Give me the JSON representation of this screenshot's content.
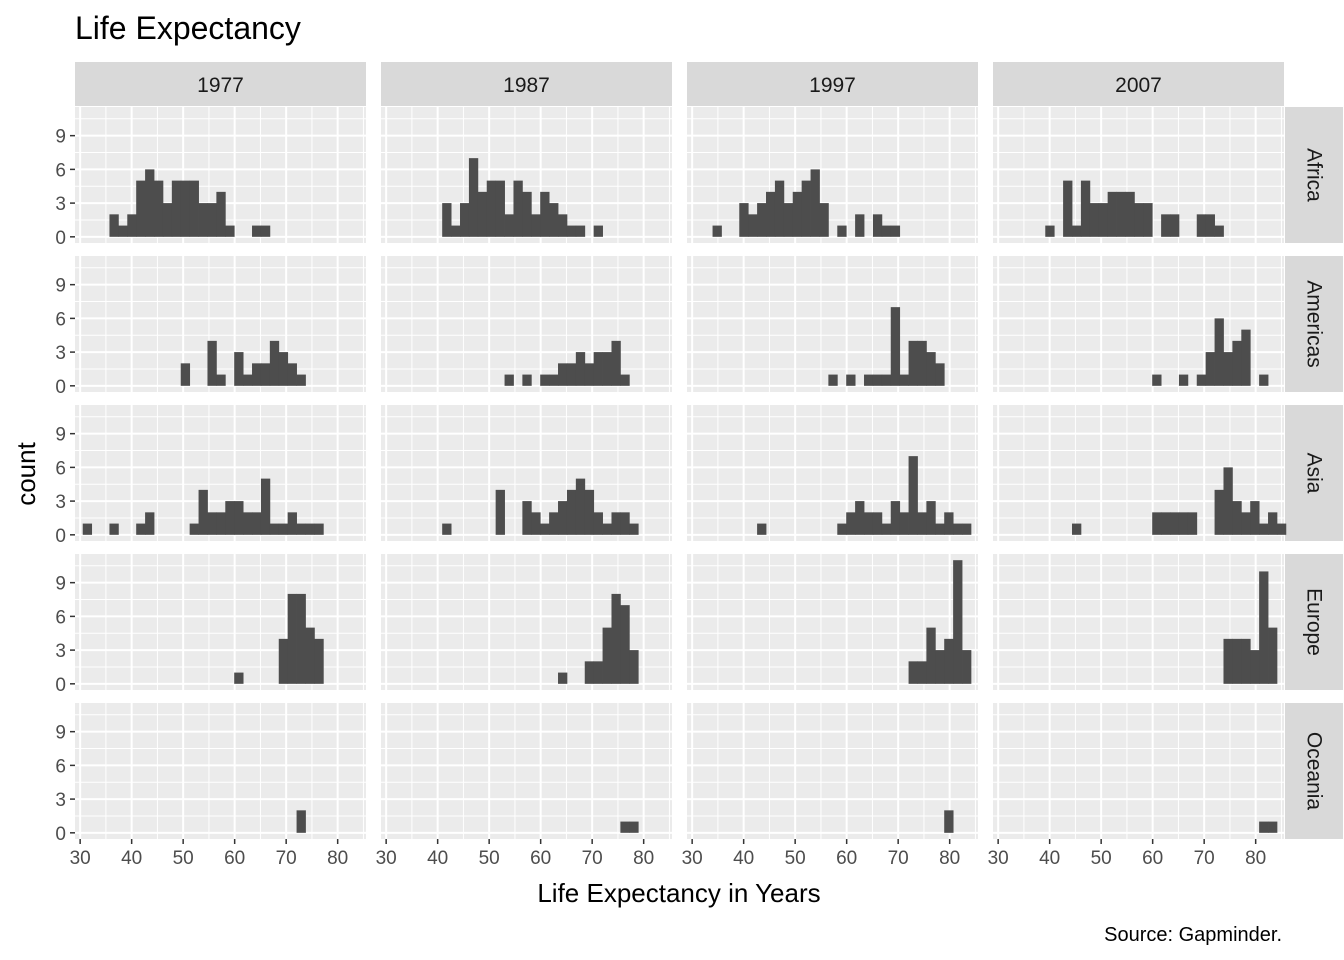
{
  "chart_data": {
    "type": "bar",
    "title": "Life Expectancy",
    "xlabel": "Life Expectancy in Years",
    "ylabel": "count",
    "caption": "Source: Gapminder.",
    "xlim": [
      29,
      85.5
    ],
    "ylim": [
      -0.55,
      11.55
    ],
    "x_ticks": [
      30,
      40,
      50,
      60,
      70,
      80
    ],
    "y_ticks": [
      0,
      3,
      6,
      9
    ],
    "bin_width": 1.73,
    "bin_start": 30.5,
    "grid": true,
    "colors": {
      "panel_bg": "#ebebeb",
      "strip_bg": "#d9d9d9",
      "bar": "#4d4d4d",
      "grid": "#ffffff"
    },
    "facet_cols": [
      "1977",
      "1987",
      "1997",
      "2007"
    ],
    "facet_rows": [
      "Africa",
      "Americas",
      "Asia",
      "Europe",
      "Oceania"
    ],
    "panels": [
      {
        "row": "Africa",
        "col": "1977",
        "counts": [
          0,
          0,
          0,
          2,
          1,
          2,
          5,
          6,
          5,
          3,
          5,
          5,
          5,
          3,
          3,
          4,
          1,
          0,
          0,
          1,
          1,
          0,
          0,
          0,
          0,
          0,
          0,
          0,
          0,
          0,
          0,
          0
        ]
      },
      {
        "row": "Africa",
        "col": "1987",
        "counts": [
          0,
          0,
          0,
          0,
          0,
          0,
          3,
          1,
          3,
          7,
          4,
          5,
          5,
          2,
          5,
          4,
          2,
          4,
          3,
          2,
          1,
          1,
          0,
          1,
          0,
          0,
          0,
          0,
          0,
          0,
          0,
          0
        ]
      },
      {
        "row": "Africa",
        "col": "1997",
        "counts": [
          0,
          0,
          1,
          0,
          0,
          3,
          2,
          3,
          4,
          5,
          3,
          4,
          5,
          6,
          3,
          0,
          1,
          0,
          2,
          0,
          2,
          1,
          1,
          0,
          0,
          0,
          0,
          0,
          0,
          0,
          0,
          0
        ]
      },
      {
        "row": "Africa",
        "col": "2007",
        "counts": [
          0,
          0,
          0,
          0,
          0,
          1,
          0,
          5,
          1,
          5,
          3,
          3,
          4,
          4,
          4,
          3,
          3,
          0,
          2,
          2,
          0,
          0,
          2,
          2,
          1,
          0,
          0,
          0,
          0,
          0,
          0,
          0
        ]
      },
      {
        "row": "Americas",
        "col": "1977",
        "counts": [
          0,
          0,
          0,
          0,
          0,
          0,
          0,
          0,
          0,
          0,
          0,
          2,
          0,
          0,
          4,
          1,
          0,
          3,
          1,
          2,
          2,
          4,
          3,
          2,
          1,
          0,
          0,
          0,
          0,
          0,
          0,
          0
        ]
      },
      {
        "row": "Americas",
        "col": "1987",
        "counts": [
          0,
          0,
          0,
          0,
          0,
          0,
          0,
          0,
          0,
          0,
          0,
          0,
          0,
          1,
          0,
          1,
          0,
          1,
          1,
          2,
          2,
          3,
          2,
          3,
          3,
          4,
          1,
          0,
          0,
          0,
          0,
          0
        ]
      },
      {
        "row": "Americas",
        "col": "1997",
        "counts": [
          0,
          0,
          0,
          0,
          0,
          0,
          0,
          0,
          0,
          0,
          0,
          0,
          0,
          0,
          0,
          1,
          0,
          1,
          0,
          1,
          1,
          1,
          7,
          1,
          4,
          4,
          3,
          2,
          0,
          0,
          0,
          0
        ]
      },
      {
        "row": "Americas",
        "col": "2007",
        "counts": [
          0,
          0,
          0,
          0,
          0,
          0,
          0,
          0,
          0,
          0,
          0,
          0,
          0,
          0,
          0,
          0,
          0,
          1,
          0,
          0,
          1,
          0,
          1,
          3,
          6,
          3,
          4,
          5,
          0,
          1,
          0,
          0
        ]
      },
      {
        "row": "Asia",
        "col": "1977",
        "counts": [
          1,
          0,
          0,
          1,
          0,
          0,
          1,
          2,
          0,
          0,
          0,
          0,
          1,
          4,
          2,
          2,
          3,
          3,
          2,
          2,
          5,
          1,
          1,
          2,
          1,
          1,
          1,
          0,
          0,
          0,
          0,
          0
        ]
      },
      {
        "row": "Asia",
        "col": "1987",
        "counts": [
          0,
          0,
          0,
          0,
          0,
          0,
          1,
          0,
          0,
          0,
          0,
          0,
          4,
          0,
          0,
          3,
          2,
          1,
          2,
          3,
          4,
          5,
          4,
          2,
          1,
          2,
          2,
          1,
          0,
          0,
          0,
          0
        ]
      },
      {
        "row": "Asia",
        "col": "1997",
        "counts": [
          0,
          0,
          0,
          0,
          0,
          0,
          0,
          1,
          0,
          0,
          0,
          0,
          0,
          0,
          0,
          0,
          1,
          2,
          3,
          2,
          2,
          1,
          3,
          2,
          7,
          2,
          3,
          1,
          2,
          1,
          1,
          0
        ]
      },
      {
        "row": "Asia",
        "col": "2007",
        "counts": [
          0,
          0,
          0,
          0,
          0,
          0,
          0,
          0,
          1,
          0,
          0,
          0,
          0,
          0,
          0,
          0,
          0,
          2,
          2,
          2,
          2,
          2,
          0,
          0,
          4,
          6,
          3,
          2,
          3,
          1,
          2,
          1
        ]
      },
      {
        "row": "Europe",
        "col": "1977",
        "counts": [
          0,
          0,
          0,
          0,
          0,
          0,
          0,
          0,
          0,
          0,
          0,
          0,
          0,
          0,
          0,
          0,
          0,
          1,
          0,
          0,
          0,
          0,
          4,
          8,
          8,
          5,
          4,
          0,
          0,
          0,
          0,
          0
        ]
      },
      {
        "row": "Europe",
        "col": "1987",
        "counts": [
          0,
          0,
          0,
          0,
          0,
          0,
          0,
          0,
          0,
          0,
          0,
          0,
          0,
          0,
          0,
          0,
          0,
          0,
          0,
          1,
          0,
          0,
          2,
          2,
          5,
          8,
          7,
          3,
          0,
          0,
          0,
          0
        ]
      },
      {
        "row": "Europe",
        "col": "1997",
        "counts": [
          0,
          0,
          0,
          0,
          0,
          0,
          0,
          0,
          0,
          0,
          0,
          0,
          0,
          0,
          0,
          0,
          0,
          0,
          0,
          0,
          0,
          0,
          0,
          0,
          2,
          2,
          5,
          3,
          4,
          11,
          3,
          0
        ]
      },
      {
        "row": "Europe",
        "col": "2007",
        "counts": [
          0,
          0,
          0,
          0,
          0,
          0,
          0,
          0,
          0,
          0,
          0,
          0,
          0,
          0,
          0,
          0,
          0,
          0,
          0,
          0,
          0,
          0,
          0,
          0,
          0,
          4,
          4,
          4,
          3,
          10,
          5,
          0
        ]
      },
      {
        "row": "Oceania",
        "col": "1977",
        "counts": [
          0,
          0,
          0,
          0,
          0,
          0,
          0,
          0,
          0,
          0,
          0,
          0,
          0,
          0,
          0,
          0,
          0,
          0,
          0,
          0,
          0,
          0,
          0,
          0,
          2,
          0,
          0,
          0,
          0,
          0,
          0,
          0
        ]
      },
      {
        "row": "Oceania",
        "col": "1987",
        "counts": [
          0,
          0,
          0,
          0,
          0,
          0,
          0,
          0,
          0,
          0,
          0,
          0,
          0,
          0,
          0,
          0,
          0,
          0,
          0,
          0,
          0,
          0,
          0,
          0,
          0,
          0,
          1,
          1,
          0,
          0,
          0,
          0
        ]
      },
      {
        "row": "Oceania",
        "col": "1997",
        "counts": [
          0,
          0,
          0,
          0,
          0,
          0,
          0,
          0,
          0,
          0,
          0,
          0,
          0,
          0,
          0,
          0,
          0,
          0,
          0,
          0,
          0,
          0,
          0,
          0,
          0,
          0,
          0,
          0,
          2,
          0,
          0,
          0
        ]
      },
      {
        "row": "Oceania",
        "col": "2007",
        "counts": [
          0,
          0,
          0,
          0,
          0,
          0,
          0,
          0,
          0,
          0,
          0,
          0,
          0,
          0,
          0,
          0,
          0,
          0,
          0,
          0,
          0,
          0,
          0,
          0,
          0,
          0,
          0,
          0,
          0,
          1,
          1,
          0
        ]
      }
    ]
  }
}
